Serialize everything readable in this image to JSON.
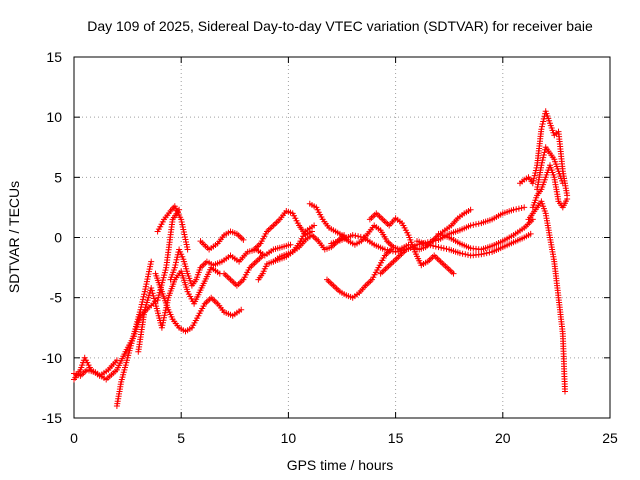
{
  "chart_data": {
    "type": "line",
    "title": "Day 109 of 2025, Sidereal Day-to-day VTEC variation (SDTVAR) for receiver baie",
    "xlabel": "GPS time / hours",
    "ylabel": "SDTVAR / TECUs",
    "xlim": [
      0,
      25
    ],
    "ylim": [
      -15,
      15
    ],
    "xticks": [
      0,
      5,
      10,
      15,
      20,
      25
    ],
    "yticks": [
      -15,
      -10,
      -5,
      0,
      5,
      10,
      15
    ],
    "xtick_labels": [
      "0",
      "5",
      "10",
      "15",
      "20",
      "25"
    ],
    "ytick_labels": [
      "-15",
      "-10",
      "-5",
      "0",
      "5",
      "10",
      "15"
    ],
    "grid": true,
    "legend": "none",
    "color": "#ff0000",
    "marker": "plus",
    "series": [
      {
        "name": "track-1",
        "x": [
          0.0,
          0.3,
          0.6,
          1.0,
          1.5,
          2.0,
          2.4,
          2.8,
          3.1,
          3.5,
          3.9,
          4.3,
          4.6,
          4.9
        ],
        "y": [
          -11.3,
          -11.5,
          -11.0,
          -11.2,
          -11.8,
          -11.0,
          -9.5,
          -8.2,
          -6.5,
          -5.8,
          -5.2,
          -2.5,
          1.5,
          2.3
        ]
      },
      {
        "name": "track-2",
        "x": [
          0.0,
          0.3,
          0.5,
          0.8,
          1.2,
          1.6,
          2.0
        ],
        "y": [
          -11.8,
          -11.0,
          -10.0,
          -11.0,
          -11.5,
          -11.0,
          -10.2
        ]
      },
      {
        "name": "track-3",
        "x": [
          2.0,
          2.2,
          2.5,
          2.8,
          3.1,
          3.3,
          3.6
        ],
        "y": [
          -14.0,
          -12.0,
          -10.0,
          -8.0,
          -6.0,
          -4.5,
          -2.0
        ]
      },
      {
        "name": "track-4",
        "x": [
          3.0,
          3.3,
          3.6,
          3.8,
          4.1,
          4.4,
          4.7,
          5.0,
          5.3,
          5.6,
          6.0,
          6.4,
          6.8
        ],
        "y": [
          -9.5,
          -6.0,
          -4.2,
          -5.5,
          -7.5,
          -5.0,
          -3.5,
          -2.8,
          -4.5,
          -5.5,
          -4.0,
          -2.5,
          -3.0
        ]
      },
      {
        "name": "track-5",
        "x": [
          3.8,
          4.1,
          4.4,
          4.6,
          4.9,
          5.2,
          5.5,
          5.8,
          6.1,
          6.4,
          6.7,
          7.0,
          7.4,
          7.8
        ],
        "y": [
          -3.0,
          -4.5,
          -6.0,
          -6.8,
          -7.5,
          -7.8,
          -7.5,
          -6.5,
          -5.5,
          -5.0,
          -5.5,
          -6.2,
          -6.5,
          -6.0
        ]
      },
      {
        "name": "track-6",
        "x": [
          3.9,
          4.2,
          4.5,
          4.7,
          5.0,
          5.3
        ],
        "y": [
          0.5,
          1.5,
          2.2,
          2.6,
          1.5,
          -1.0
        ]
      },
      {
        "name": "track-7",
        "x": [
          4.5,
          4.7,
          4.9,
          5.1,
          5.3,
          5.5,
          5.7,
          5.9,
          6.2,
          6.5,
          6.9,
          7.3,
          7.7,
          8.1,
          8.5,
          8.9,
          9.3,
          9.7,
          10.1
        ],
        "y": [
          -3.5,
          -2.5,
          -1.0,
          -1.8,
          -3.0,
          -4.0,
          -3.5,
          -2.5,
          -2.0,
          -2.3,
          -2.0,
          -1.5,
          -2.0,
          -1.2,
          -1.0,
          -1.5,
          -1.0,
          -0.8,
          -0.6
        ]
      },
      {
        "name": "track-8",
        "x": [
          5.9,
          6.3,
          6.7,
          7.0,
          7.3,
          7.6,
          7.9
        ],
        "y": [
          -0.3,
          -1.0,
          -0.5,
          0.2,
          0.5,
          0.3,
          -0.2
        ]
      },
      {
        "name": "track-9",
        "x": [
          7.0,
          7.3,
          7.6,
          7.9,
          8.2,
          8.5,
          8.8
        ],
        "y": [
          -3.0,
          -3.5,
          -4.0,
          -3.5,
          -2.5,
          -2.0,
          -1.5
        ]
      },
      {
        "name": "track-10",
        "x": [
          8.4,
          8.7,
          9.0,
          9.3,
          9.6,
          9.9,
          10.2,
          10.5,
          10.8,
          11.1
        ],
        "y": [
          -1.0,
          -0.5,
          0.5,
          1.0,
          1.5,
          2.2,
          2.0,
          1.0,
          0.2,
          0.5
        ]
      },
      {
        "name": "track-11",
        "x": [
          9.3,
          9.6,
          9.9,
          10.2,
          10.5,
          10.8,
          11.1,
          11.4,
          11.7,
          12.0,
          12.3,
          12.6
        ],
        "y": [
          -2.0,
          -1.6,
          -1.4,
          -1.2,
          -0.8,
          -0.2,
          0.2,
          -0.3,
          -1.0,
          -0.8,
          -0.3,
          0.2
        ]
      },
      {
        "name": "track-12",
        "x": [
          8.6,
          8.8,
          9.0,
          9.3,
          9.6,
          9.9,
          10.2,
          10.5,
          10.8,
          11.2
        ],
        "y": [
          -3.5,
          -3.0,
          -2.2,
          -2.0,
          -1.8,
          -1.6,
          -1.2,
          -0.5,
          0.5,
          1.0
        ]
      },
      {
        "name": "track-13",
        "x": [
          11.0,
          11.3,
          11.6,
          11.9,
          12.2,
          12.5,
          12.8,
          13.1,
          13.4,
          13.7,
          14.0,
          14.3,
          14.6,
          14.9,
          15.2,
          15.6
        ],
        "y": [
          2.8,
          2.5,
          1.5,
          0.8,
          0.5,
          0.2,
          -0.3,
          -0.6,
          -0.3,
          0.3,
          1.0,
          0.6,
          -0.3,
          -0.8,
          -1.0,
          -0.6
        ]
      },
      {
        "name": "track-14",
        "x": [
          11.8,
          12.1,
          12.4,
          12.7,
          13.0,
          13.3,
          13.6,
          13.9,
          14.2,
          14.5,
          14.8
        ],
        "y": [
          -3.5,
          -4.0,
          -4.5,
          -4.8,
          -5.0,
          -4.6,
          -4.0,
          -3.5,
          -2.5,
          -1.5,
          -1.0
        ]
      },
      {
        "name": "track-15",
        "x": [
          12.0,
          12.5,
          13.0,
          13.5,
          14.0,
          14.5,
          15.0,
          15.5,
          16.0,
          16.5,
          17.0,
          17.5,
          18.0,
          18.5,
          19.0,
          19.5,
          20.0,
          20.5,
          21.0
        ],
        "y": [
          -0.5,
          -0.2,
          0.2,
          0.0,
          -0.6,
          -1.0,
          -1.2,
          -1.0,
          -0.6,
          -0.4,
          -0.2,
          0.3,
          0.6,
          1.0,
          1.2,
          1.5,
          2.0,
          2.3,
          2.5
        ]
      },
      {
        "name": "track-16",
        "x": [
          13.8,
          14.1,
          14.4,
          14.7,
          15.0,
          15.3,
          15.6,
          15.9,
          16.2,
          16.5,
          16.8,
          17.1,
          17.4,
          17.7
        ],
        "y": [
          1.5,
          2.0,
          1.5,
          1.0,
          1.6,
          1.2,
          0.2,
          -1.2,
          -2.3,
          -2.0,
          -1.5,
          -2.0,
          -2.5,
          -3.0
        ]
      },
      {
        "name": "track-17",
        "x": [
          14.3,
          14.6,
          14.9,
          15.2,
          15.5,
          15.8,
          16.1,
          16.4,
          16.7,
          17.0,
          17.3,
          17.6,
          17.9,
          18.2,
          18.5
        ],
        "y": [
          -3.0,
          -2.5,
          -2.0,
          -1.5,
          -1.0,
          -0.8,
          -1.0,
          -0.8,
          -0.3,
          0.2,
          0.6,
          1.0,
          1.6,
          2.0,
          2.3
        ]
      },
      {
        "name": "track-18",
        "x": [
          16.0,
          16.5,
          17.0,
          17.5,
          18.0,
          18.5,
          19.0,
          19.5,
          20.0,
          20.5,
          21.0,
          21.3
        ],
        "y": [
          -0.3,
          -0.6,
          -0.8,
          -1.0,
          -1.3,
          -1.5,
          -1.4,
          -1.2,
          -0.8,
          -0.4,
          0.0,
          0.3
        ]
      },
      {
        "name": "track-19",
        "x": [
          17.0,
          17.5,
          18.0,
          18.5,
          19.0,
          19.5,
          20.0,
          20.5,
          21.0,
          21.4
        ],
        "y": [
          0.3,
          0.0,
          -0.5,
          -0.9,
          -1.0,
          -0.7,
          -0.3,
          0.2,
          0.8,
          1.5
        ]
      },
      {
        "name": "track-20",
        "x": [
          20.8,
          21.0,
          21.2,
          21.4,
          21.6,
          21.8,
          22.0,
          22.2,
          22.4,
          22.6,
          22.8,
          23.0
        ],
        "y": [
          4.5,
          4.8,
          5.0,
          4.5,
          6.0,
          9.0,
          10.5,
          9.5,
          8.5,
          8.8,
          5.5,
          3.5
        ]
      },
      {
        "name": "track-21",
        "x": [
          21.4,
          21.6,
          21.8,
          22.0,
          22.2,
          22.4,
          22.6,
          22.8,
          23.0
        ],
        "y": [
          2.5,
          3.5,
          4.0,
          5.0,
          6.0,
          5.0,
          3.0,
          2.5,
          3.2
        ]
      },
      {
        "name": "track-22",
        "x": [
          21.2,
          21.4,
          21.6,
          21.8,
          22.0,
          22.2,
          22.4,
          22.6,
          22.8,
          22.9
        ],
        "y": [
          1.5,
          2.0,
          2.5,
          3.0,
          2.0,
          0.0,
          -2.0,
          -5.0,
          -8.0,
          -12.8
        ]
      },
      {
        "name": "track-23",
        "x": [
          21.6,
          21.8,
          22.0,
          22.2,
          22.4,
          22.6,
          22.8
        ],
        "y": [
          4.0,
          6.0,
          7.5,
          7.0,
          6.5,
          5.5,
          4.5
        ]
      }
    ]
  }
}
